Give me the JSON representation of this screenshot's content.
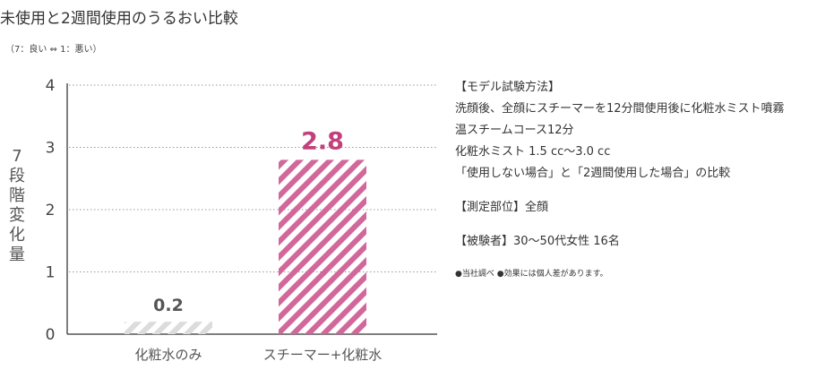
{
  "page": {
    "title": "未使用と2週間使用のうるおい比較",
    "subtitle": "（7：良い ⇔ 1：悪い）"
  },
  "chart_data": {
    "type": "bar",
    "categories": [
      "化粧水のみ",
      "スチーマー+化粧水"
    ],
    "values": [
      0.2,
      2.8
    ],
    "data_labels": [
      "0.2",
      "2.8"
    ],
    "ylabel": "7段階変化量",
    "ylim": [
      0,
      4
    ],
    "yticks": [
      "0",
      "1",
      "2",
      "3",
      "4"
    ],
    "grid": true,
    "bar_colors": [
      "#dcdcdc",
      "#d1679a"
    ],
    "label_colors": [
      "#555555",
      "#c2407c"
    ],
    "axis_color": "#555555"
  },
  "info": {
    "method_heading": "【モデル試験方法】",
    "method_line1": "洗顔後、全顔にスチーマーを12分間使用後に化粧水ミスト噴霧",
    "method_line2": "温スチームコース12分",
    "method_line3": "化粧水ミスト 1.5 cc〜3.0 cc",
    "method_line4": "「使用しない場合」と「2週間使用した場合」の比較",
    "site": "【測定部位】全顔",
    "subjects": "【被験者】30〜50代女性 16名",
    "note": "●当社調べ ●効果には個人差があります。"
  }
}
